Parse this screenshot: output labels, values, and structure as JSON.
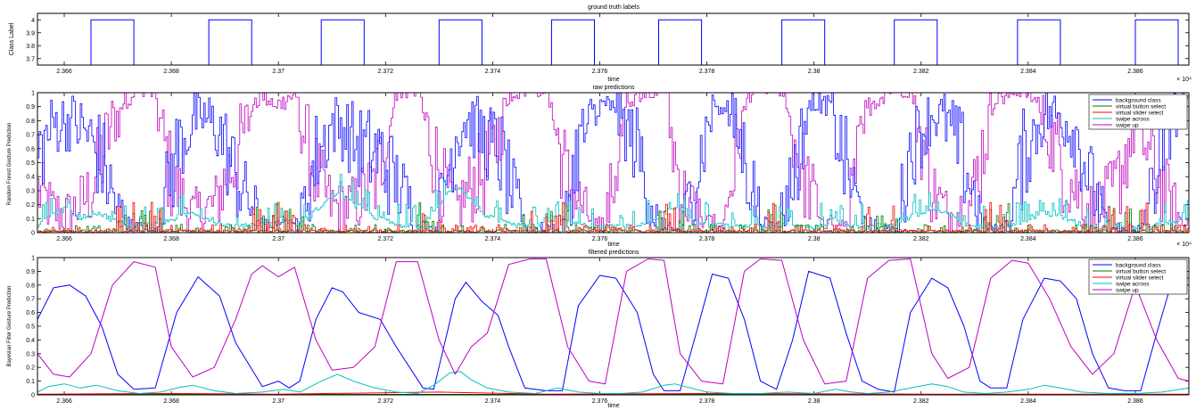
{
  "chart_data": [
    {
      "type": "line",
      "title": "ground truth labels",
      "xlabel": "time",
      "ylabel": "Class Label",
      "x_exponent": "× 10⁴",
      "xlim": [
        2.3655,
        2.387
      ],
      "ylim": [
        3.65,
        4.05
      ],
      "x_ticks": [
        2.366,
        2.368,
        2.37,
        2.372,
        2.374,
        2.376,
        2.378,
        2.38,
        2.382,
        2.384,
        2.386
      ],
      "x_tick_labels": [
        "2.366",
        "2.368",
        "2.37",
        "2.372",
        "2.374",
        "2.376",
        "2.378",
        "2.38",
        "2.382",
        "2.384",
        "2.386"
      ],
      "y_ticks": [
        3.7,
        3.8,
        3.9,
        4
      ],
      "y_tick_labels": [
        "3.7",
        "3.8",
        "3.9",
        "4"
      ],
      "grid": false,
      "series": [
        {
          "color": "#0000ff",
          "pulses": [
            [
              2.3665,
              2.3673
            ],
            [
              2.3687,
              2.3695
            ],
            [
              2.3708,
              2.3716
            ],
            [
              2.373,
              2.3738
            ],
            [
              2.3751,
              2.3759
            ],
            [
              2.3771,
              2.3779
            ],
            [
              2.3794,
              2.3802
            ],
            [
              2.3815,
              2.3823
            ],
            [
              2.3838,
              2.3846
            ],
            [
              2.386,
              2.3868
            ]
          ],
          "high": 4,
          "low": 3.65
        }
      ]
    },
    {
      "type": "line",
      "title": "raw predictions",
      "xlabel": "time",
      "ylabel": "Random Forest Gesture Prediction",
      "x_exponent": "× 10⁴",
      "xlim": [
        2.3655,
        2.387
      ],
      "ylim": [
        0,
        1
      ],
      "x_ticks": [
        2.366,
        2.368,
        2.37,
        2.372,
        2.374,
        2.376,
        2.378,
        2.38,
        2.382,
        2.384,
        2.386
      ],
      "x_tick_labels": [
        "2.366",
        "2.368",
        "2.37",
        "2.372",
        "2.374",
        "2.376",
        "2.378",
        "2.38",
        "2.382",
        "2.384",
        "2.386"
      ],
      "y_ticks": [
        0,
        0.1,
        0.2,
        0.3,
        0.4,
        0.5,
        0.6,
        0.7,
        0.8,
        0.9,
        1
      ],
      "y_tick_labels": [
        "0",
        "0.1",
        "0.2",
        "0.3",
        "0.4",
        "0.5",
        "0.6",
        "0.7",
        "0.8",
        "0.9",
        "1"
      ],
      "grid": false,
      "legend_placement": "top-right",
      "series": [
        {
          "name": "background class",
          "color": "#0000ff"
        },
        {
          "name": "virtual button select",
          "color": "#008000"
        },
        {
          "name": "virtual slider select",
          "color": "#ff0000"
        },
        {
          "name": "swipe across",
          "color": "#00bfbf"
        },
        {
          "name": "swipe up",
          "color": "#bf00bf"
        }
      ]
    },
    {
      "type": "line",
      "title": "filtered predictions",
      "xlabel": "time",
      "ylabel": "Bayesian Filter Gesture Prediction",
      "x_exponent": "× 10⁴",
      "xlim": [
        2.3655,
        2.387
      ],
      "ylim": [
        0,
        1
      ],
      "x_ticks": [
        2.366,
        2.368,
        2.37,
        2.372,
        2.374,
        2.376,
        2.378,
        2.38,
        2.382,
        2.384,
        2.386
      ],
      "x_tick_labels": [
        "2.366",
        "2.368",
        "2.37",
        "2.372",
        "2.374",
        "2.376",
        "2.378",
        "2.38",
        "2.382",
        "2.384",
        "2.386"
      ],
      "y_ticks": [
        0,
        0.1,
        0.2,
        0.3,
        0.4,
        0.5,
        0.6,
        0.7,
        0.8,
        0.9,
        1
      ],
      "y_tick_labels": [
        "0",
        "0.1",
        "0.2",
        "0.3",
        "0.4",
        "0.5",
        "0.6",
        "0.7",
        "0.8",
        "0.9",
        "1"
      ],
      "grid": false,
      "legend_placement": "top-right",
      "series": [
        {
          "name": "background class",
          "color": "#0000ff",
          "x": [
            2.3655,
            2.3658,
            2.3661,
            2.3664,
            2.3667,
            2.367,
            2.3673,
            2.3677,
            2.3681,
            2.3685,
            2.3689,
            2.3692,
            2.3697,
            2.37,
            2.3702,
            2.3704,
            2.3707,
            2.371,
            2.3712,
            2.3715,
            2.3719,
            2.3722,
            2.3727,
            2.3729,
            2.3733,
            2.3735,
            2.3738,
            2.3741,
            2.3743,
            2.3746,
            2.375,
            2.3753,
            2.3756,
            2.376,
            2.3763,
            2.3767,
            2.377,
            2.3772,
            2.3775,
            2.3778,
            2.3781,
            2.3784,
            2.3787,
            2.379,
            2.3793,
            2.3796,
            2.3799,
            2.3803,
            2.3806,
            2.3809,
            2.3812,
            2.3815,
            2.3818,
            2.3822,
            2.3825,
            2.3828,
            2.3831,
            2.3833,
            2.3836,
            2.3839,
            2.3843,
            2.3846,
            2.3849,
            2.3852,
            2.3855,
            2.3858,
            2.3861,
            2.3864,
            2.3867,
            2.387
          ],
          "y": [
            0.55,
            0.78,
            0.8,
            0.72,
            0.5,
            0.15,
            0.04,
            0.05,
            0.6,
            0.86,
            0.72,
            0.38,
            0.06,
            0.1,
            0.05,
            0.1,
            0.55,
            0.78,
            0.75,
            0.6,
            0.55,
            0.35,
            0.05,
            0.04,
            0.7,
            0.82,
            0.68,
            0.58,
            0.35,
            0.05,
            0.03,
            0.03,
            0.65,
            0.87,
            0.85,
            0.6,
            0.15,
            0.03,
            0.03,
            0.45,
            0.88,
            0.85,
            0.55,
            0.1,
            0.04,
            0.4,
            0.9,
            0.85,
            0.45,
            0.1,
            0.04,
            0.02,
            0.6,
            0.85,
            0.78,
            0.5,
            0.1,
            0.05,
            0.05,
            0.55,
            0.85,
            0.83,
            0.7,
            0.3,
            0.05,
            0.03,
            0.03,
            0.45,
            0.85,
            0.85
          ]
        },
        {
          "name": "virtual button select",
          "color": "#008000",
          "x": [
            2.3655,
            2.387
          ],
          "y": [
            0.003,
            0.003
          ]
        },
        {
          "name": "virtual slider select",
          "color": "#ff0000",
          "x": [
            2.3655,
            2.368,
            2.37,
            2.373,
            2.375,
            2.378,
            2.382,
            2.387
          ],
          "y": [
            0.005,
            0.01,
            0.005,
            0.02,
            0.005,
            0.01,
            0.005,
            0.005
          ]
        },
        {
          "name": "swipe across",
          "color": "#00bfbf",
          "x": [
            2.3655,
            2.3657,
            2.366,
            2.3663,
            2.3666,
            2.367,
            2.3674,
            2.3678,
            2.3681,
            2.3684,
            2.3688,
            2.3692,
            2.3697,
            2.3701,
            2.3704,
            2.3708,
            2.3711,
            2.3714,
            2.3718,
            2.3722,
            2.3726,
            2.3729,
            2.3732,
            2.3734,
            2.3736,
            2.3739,
            2.3743,
            2.3748,
            2.3752,
            2.3756,
            2.376,
            2.3764,
            2.3768,
            2.3772,
            2.3774,
            2.3777,
            2.378,
            2.3785,
            2.379,
            2.3795,
            2.38,
            2.3804,
            2.3807,
            2.381,
            2.3814,
            2.3818,
            2.3822,
            2.3825,
            2.3828,
            2.3832,
            2.3836,
            2.384,
            2.3843,
            2.3846,
            2.385,
            2.3855,
            2.386,
            2.3865,
            2.387
          ],
          "y": [
            0.02,
            0.06,
            0.08,
            0.05,
            0.07,
            0.03,
            0.01,
            0.02,
            0.05,
            0.07,
            0.03,
            0.01,
            0.02,
            0.04,
            0.02,
            0.1,
            0.15,
            0.1,
            0.05,
            0.02,
            0.01,
            0.07,
            0.16,
            0.17,
            0.11,
            0.05,
            0.02,
            0.01,
            0.05,
            0.02,
            0.01,
            0.01,
            0.02,
            0.07,
            0.08,
            0.05,
            0.02,
            0.01,
            0.01,
            0.02,
            0.01,
            0.04,
            0.02,
            0.01,
            0.02,
            0.05,
            0.08,
            0.06,
            0.02,
            0.01,
            0.02,
            0.04,
            0.07,
            0.05,
            0.02,
            0.01,
            0.01,
            0.02,
            0.05
          ]
        },
        {
          "name": "swipe up",
          "color": "#bf00bf",
          "x": [
            2.3655,
            2.3658,
            2.3661,
            2.3665,
            2.3669,
            2.3673,
            2.3677,
            2.368,
            2.3684,
            2.3688,
            2.3692,
            2.3695,
            2.3697,
            2.37,
            2.3703,
            2.3707,
            2.371,
            2.3714,
            2.3718,
            2.3722,
            2.3726,
            2.373,
            2.3733,
            2.3736,
            2.3739,
            2.3743,
            2.3747,
            2.375,
            2.3754,
            2.3758,
            2.3761,
            2.3765,
            2.3769,
            2.3772,
            2.3775,
            2.3779,
            2.3783,
            2.3787,
            2.379,
            2.3794,
            2.3798,
            2.3802,
            2.3806,
            2.381,
            2.3814,
            2.3818,
            2.3822,
            2.3825,
            2.3829,
            2.3833,
            2.3837,
            2.384,
            2.3844,
            2.3848,
            2.3852,
            2.3856,
            2.386,
            2.3864,
            2.3868,
            2.387
          ],
          "y": [
            0.3,
            0.15,
            0.13,
            0.3,
            0.8,
            0.97,
            0.93,
            0.35,
            0.13,
            0.2,
            0.55,
            0.88,
            0.94,
            0.86,
            0.93,
            0.4,
            0.18,
            0.2,
            0.35,
            0.97,
            0.97,
            0.4,
            0.15,
            0.35,
            0.45,
            0.95,
            0.99,
            0.99,
            0.35,
            0.1,
            0.08,
            0.9,
            0.99,
            0.98,
            0.3,
            0.1,
            0.08,
            0.9,
            0.99,
            0.98,
            0.4,
            0.08,
            0.1,
            0.85,
            0.98,
            0.99,
            0.3,
            0.12,
            0.2,
            0.85,
            0.98,
            0.96,
            0.7,
            0.35,
            0.15,
            0.3,
            0.8,
            0.4,
            0.12,
            0.1
          ]
        }
      ]
    }
  ]
}
